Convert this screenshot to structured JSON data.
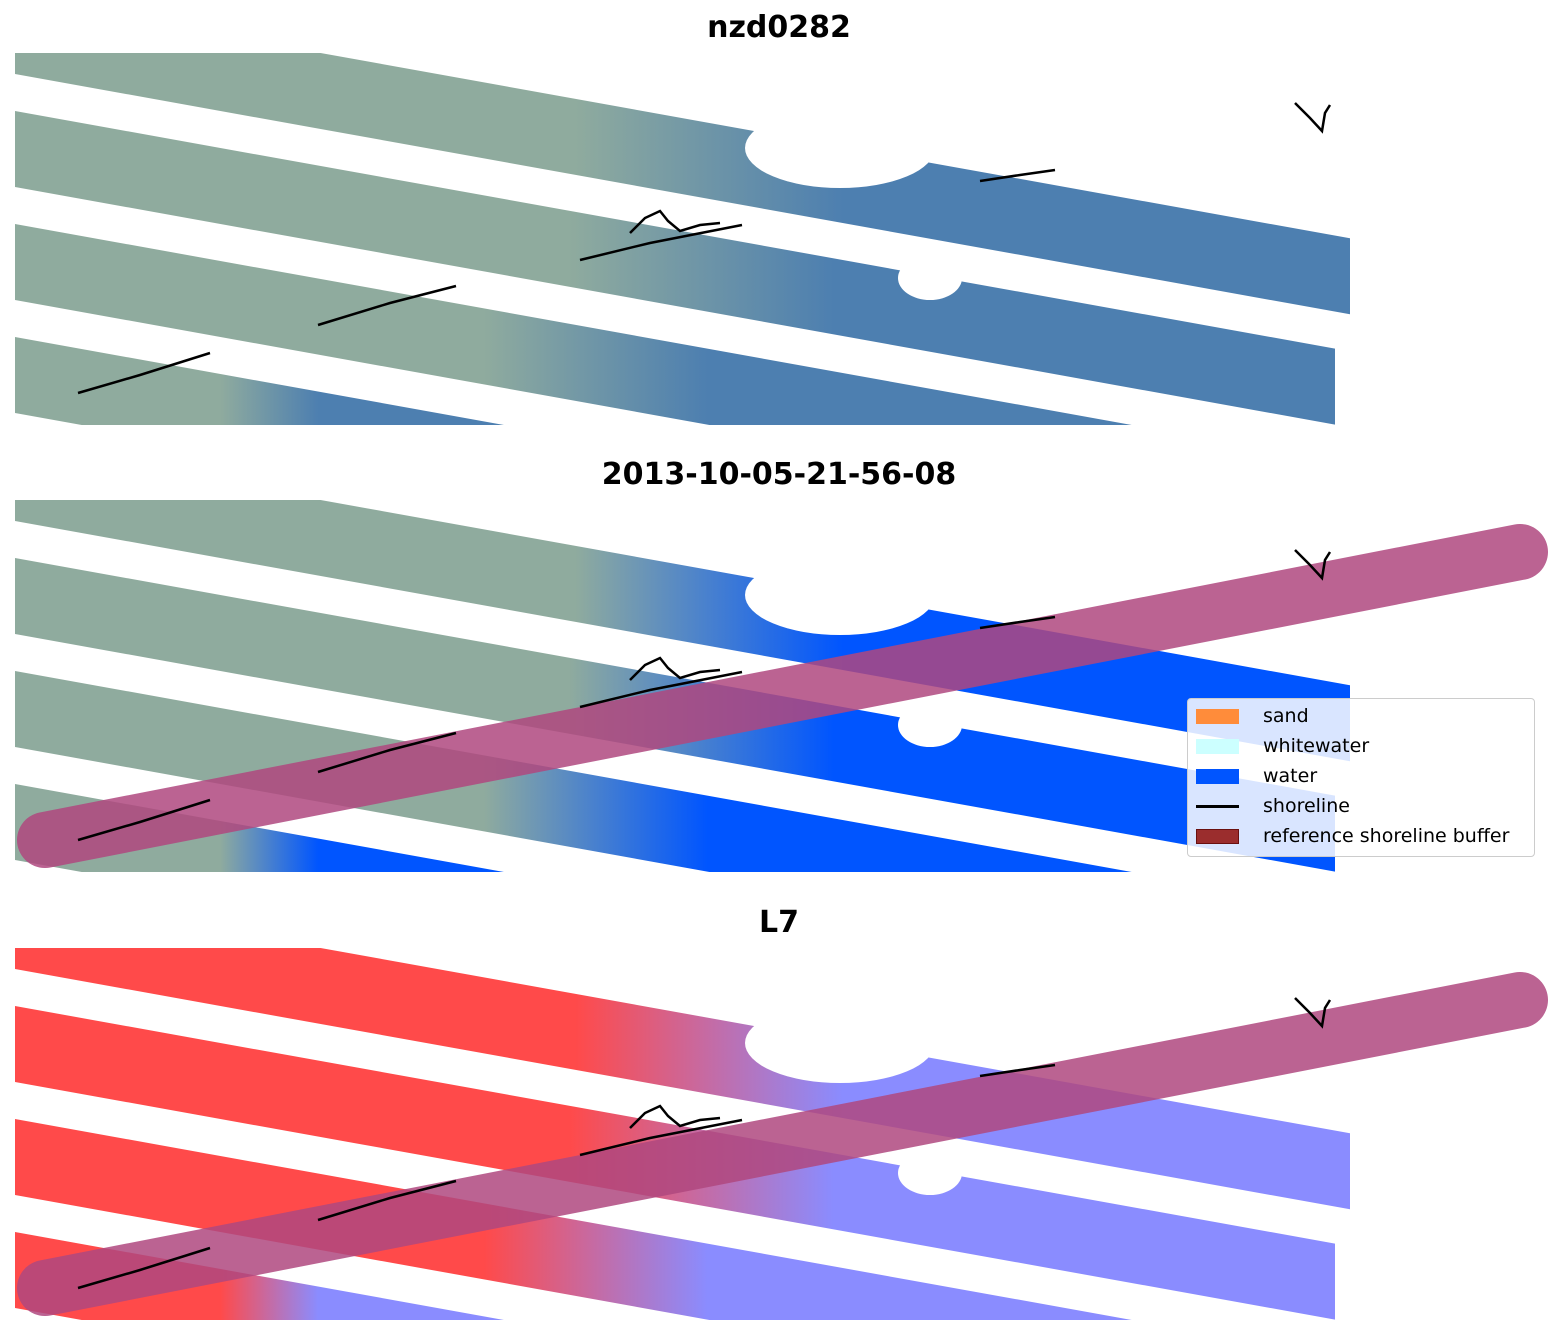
{
  "panels": [
    {
      "title": "nzd0282",
      "mode": "rgb"
    },
    {
      "title": "2013-10-05-21-56-08",
      "mode": "classified"
    },
    {
      "title": "L7",
      "mode": "index"
    }
  ],
  "legend": {
    "items": [
      {
        "label": "sand",
        "color": "#ff8c3a",
        "kind": "patch"
      },
      {
        "label": "whitewater",
        "color": "#ccffff",
        "kind": "patch"
      },
      {
        "label": "water",
        "color": "#0055ff",
        "kind": "patch"
      },
      {
        "label": "shoreline",
        "color": "#000000",
        "kind": "line"
      },
      {
        "label": "reference shoreline buffer",
        "color": "#9b2d2d",
        "kind": "patch"
      }
    ]
  },
  "colors": {
    "land_rgb": "#8fab9e",
    "water_rgb": "#4d7fb0",
    "water_class": "#0055ff",
    "land_index": "#ff4a4a",
    "water_index": "#8a8cff",
    "buffer": "#b0487f"
  }
}
